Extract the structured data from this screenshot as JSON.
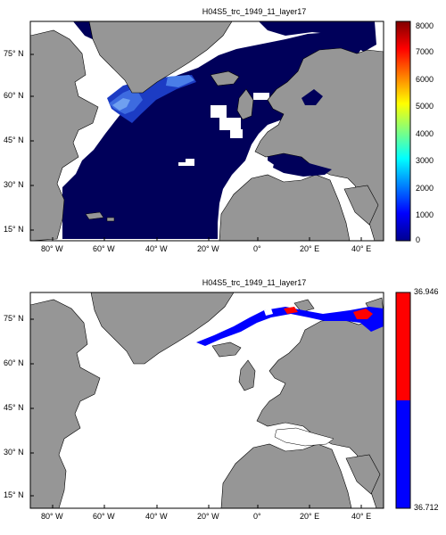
{
  "panels": [
    {
      "title": "H04S5_trc_1949_11_layer17",
      "lat_ticks": [
        "75° N",
        "60° N",
        "45° N",
        "30° N",
        "15° N"
      ],
      "lon_ticks": [
        "80° W",
        "60° W",
        "40° W",
        "20° W",
        "0°",
        "20° E",
        "40° E"
      ],
      "colorbar": {
        "type": "continuous",
        "colormap": "jet",
        "ticks": [
          "8000",
          "7000",
          "6000",
          "5000",
          "4000",
          "3000",
          "2000",
          "1000",
          "0"
        ],
        "min": 0,
        "max": 8000
      }
    },
    {
      "title": "H04S5_trc_1949_11_layer17",
      "lat_ticks": [
        "75° N",
        "60° N",
        "45° N",
        "30° N",
        "15° N"
      ],
      "lon_ticks": [
        "80° W",
        "60° W",
        "40° W",
        "20° W",
        "0°",
        "20° E",
        "40° E"
      ],
      "colorbar": {
        "type": "discrete",
        "colors": [
          "#ff0000",
          "#0000ff"
        ],
        "ticks": [
          "36.946",
          "36.712"
        ],
        "min": 36.712,
        "max": 36.946
      }
    }
  ],
  "colors": {
    "land": "#969696",
    "ocean_low": "#00005a",
    "tracer_high": "#ff0000",
    "tracer_low": "#0000ff",
    "no_data": "#ffffff"
  }
}
